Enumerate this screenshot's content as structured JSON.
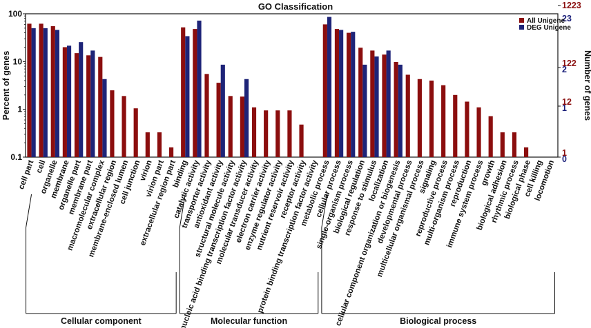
{
  "chart_data": {
    "type": "bar",
    "title": "GO Classification",
    "ylabel": "Percent of genes",
    "y2label": "Number of genes",
    "yscale": "log",
    "ylim": [
      0.1,
      100
    ],
    "y_ticks": [
      "100",
      "10",
      "1",
      "0.1"
    ],
    "right_ticks_all": [
      "1223",
      "122",
      "12",
      "1"
    ],
    "right_ticks_deg": [
      "23",
      "2",
      "1",
      "0"
    ],
    "legend": {
      "position": "top-right",
      "entries": [
        "All Unigene",
        "DEG Unigene"
      ]
    },
    "colors": {
      "all": "#8b0e0e",
      "deg": "#1e2478"
    },
    "categories": [
      "cell part",
      "cell",
      "organelle",
      "membrane",
      "organelle part",
      "membrane part",
      "macromolecular complex",
      "extracellular region",
      "membrane-enclosed lumen",
      "cell junction",
      "virion",
      "virion part",
      "extracellular region part",
      "binding",
      "catalytic activity",
      "transporter activity",
      "antioxidant activity",
      "structural molecule activity",
      "nucleic acid binding transcription factor activity",
      "molecular transducer activity",
      "electron carrier activity",
      "enzyme regulator activity",
      "nutrient reservoir activity",
      "receptor activity",
      "protein binding transcription factor activity",
      "metabolic process",
      "cellular process",
      "single-organism process",
      "biological regulation",
      "response to stimulus",
      "localization",
      "cellular component organization or biogenesis",
      "developmental process",
      "multicellular organismal process",
      "signaling",
      "reproductive process",
      "multi-organism process",
      "reproduction",
      "immune system process",
      "growth",
      "biological adhesion",
      "rhythmic process",
      "biological phase",
      "cell killing",
      "locomotion"
    ],
    "series": [
      {
        "name": "All Unigene",
        "values": [
          62,
          62,
          55,
          20,
          15,
          13.5,
          12.5,
          2.5,
          1.9,
          1.05,
          0.33,
          0.33,
          0.16,
          52,
          48,
          5.5,
          3.6,
          1.9,
          1.85,
          1.1,
          0.95,
          0.95,
          0.95,
          0.48,
          null,
          60,
          48,
          40,
          19.5,
          17,
          14,
          9.8,
          5.3,
          4.3,
          4.0,
          3.2,
          2.0,
          1.45,
          1.1,
          0.72,
          0.33,
          0.33,
          0.16,
          null,
          null
        ]
      },
      {
        "name": "DEG Unigene",
        "values": [
          50,
          50,
          46,
          21.5,
          25.5,
          17,
          4.3,
          null,
          null,
          null,
          null,
          null,
          null,
          34,
          72,
          null,
          8.6,
          null,
          4.3,
          null,
          null,
          null,
          null,
          null,
          null,
          86,
          46,
          42,
          8.6,
          12.8,
          17,
          8.6,
          null,
          null,
          null,
          null,
          null,
          null,
          null,
          null,
          null,
          null,
          null,
          null,
          null
        ]
      }
    ],
    "groups": [
      {
        "label": "Cellular component",
        "start": 0,
        "end": 12
      },
      {
        "label": "Molecular function",
        "start": 13,
        "end": 24
      },
      {
        "label": "Biological process",
        "start": 25,
        "end": 44
      }
    ]
  }
}
